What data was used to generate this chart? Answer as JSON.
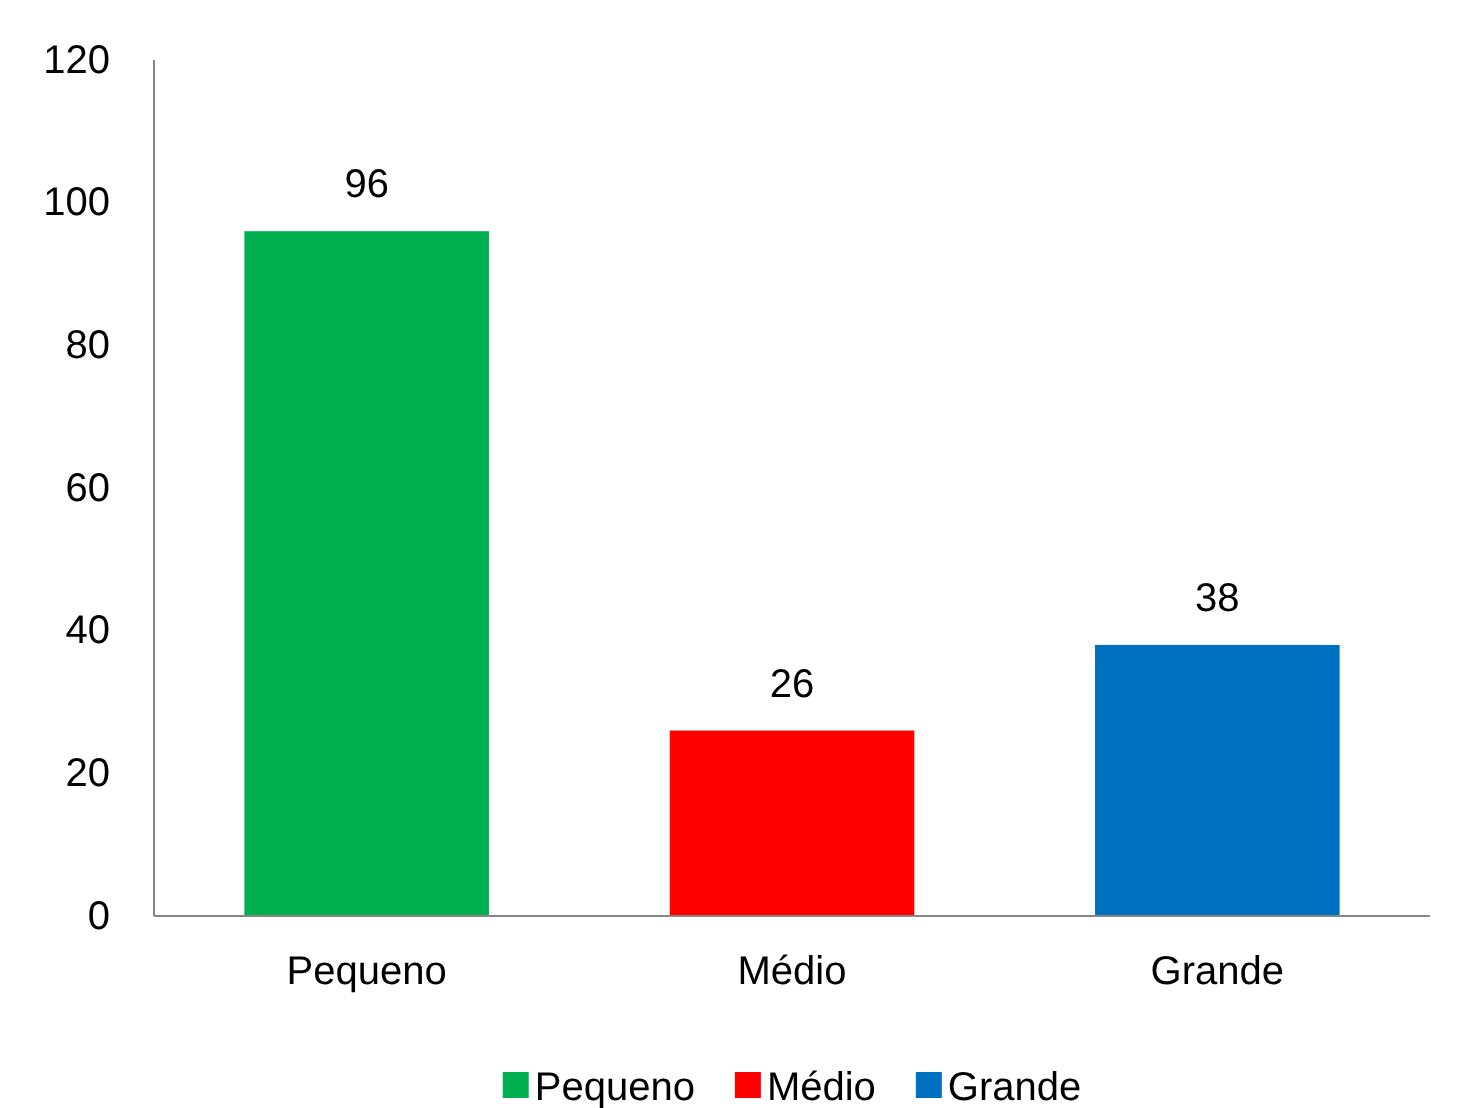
{
  "chart_data": {
    "type": "bar",
    "categories": [
      "Pequeno",
      "Médio",
      "Grande"
    ],
    "stacked": true,
    "series": [
      {
        "name": "Pequeno",
        "color": "#00b050",
        "values": [
          96,
          null,
          null
        ]
      },
      {
        "name": "Médio",
        "color": "#ff0000",
        "values": [
          null,
          26,
          null
        ]
      },
      {
        "name": "Grande",
        "color": "#0070c0",
        "values": [
          null,
          null,
          38
        ]
      }
    ],
    "ylim": [
      0,
      120
    ],
    "yticks": [
      0,
      20,
      40,
      60,
      80,
      100,
      120
    ],
    "data_labels": true,
    "legend": "bottom"
  }
}
